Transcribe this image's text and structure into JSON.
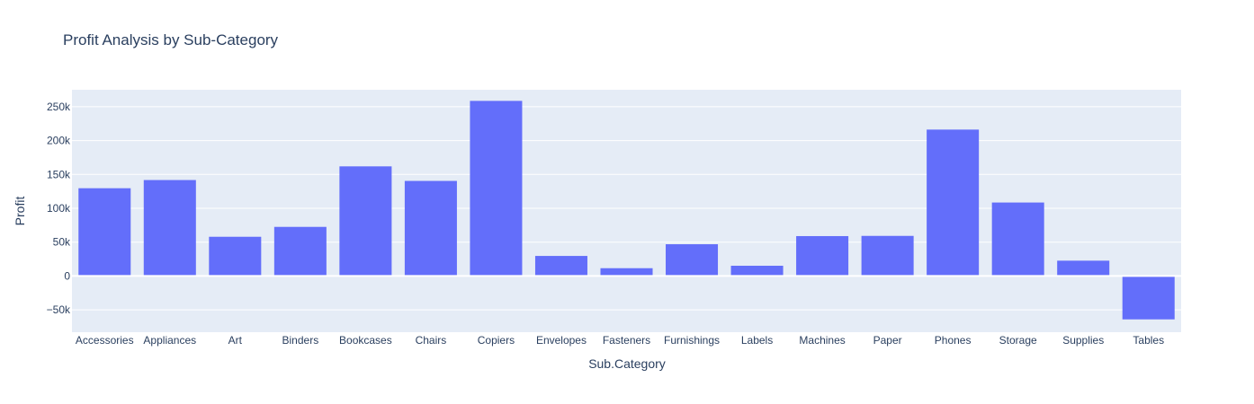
{
  "chart_data": {
    "type": "bar",
    "title": "Profit Analysis by Sub-Category",
    "xlabel": "Sub.Category",
    "ylabel": "Profit",
    "categories": [
      "Accessories",
      "Appliances",
      "Art",
      "Binders",
      "Bookcases",
      "Chairs",
      "Copiers",
      "Envelopes",
      "Fasteners",
      "Furnishings",
      "Labels",
      "Machines",
      "Paper",
      "Phones",
      "Storage",
      "Supplies",
      "Tables"
    ],
    "values": [
      129600,
      141700,
      57900,
      72500,
      161900,
      140400,
      258600,
      29600,
      11500,
      46900,
      15100,
      58900,
      59200,
      216200,
      108500,
      22600,
      -64100
    ],
    "ylim": [
      -83000,
      275000
    ],
    "yticks": [
      -50000,
      0,
      50000,
      100000,
      150000,
      200000,
      250000
    ],
    "ytick_labels": [
      "−50k",
      "0",
      "50k",
      "100k",
      "150k",
      "200k",
      "250k"
    ],
    "grid": true,
    "colors": {
      "bar": "#636efa",
      "plot_bg": "#e5ecf6",
      "grid": "#ffffff",
      "text": "#2a3f5f"
    }
  }
}
